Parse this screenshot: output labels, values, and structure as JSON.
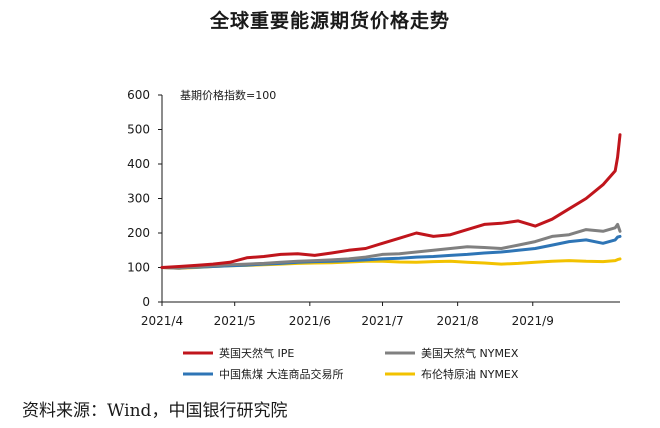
{
  "chart_data": {
    "type": "line",
    "title": "全球重要能源期货价格走势",
    "annotation": "基期价格指数=100",
    "source": "资料来源：Wind，中国银行研究院",
    "x_ticks": [
      "2021/4",
      "2021/5",
      "2021/6",
      "2021/7",
      "2021/8",
      "2021/9"
    ],
    "y_ticks": [
      "0",
      "100",
      "200",
      "300",
      "400",
      "500",
      "600"
    ],
    "ylim": [
      0,
      600
    ],
    "grid": false,
    "legend_position": "bottom",
    "x": [
      "2021-04-01",
      "2021-04-08",
      "2021-04-15",
      "2021-04-22",
      "2021-04-29",
      "2021-05-06",
      "2021-05-13",
      "2021-05-20",
      "2021-05-27",
      "2021-06-03",
      "2021-06-10",
      "2021-06-17",
      "2021-06-24",
      "2021-07-01",
      "2021-07-08",
      "2021-07-15",
      "2021-07-22",
      "2021-07-29",
      "2021-08-05",
      "2021-08-12",
      "2021-08-19",
      "2021-08-26",
      "2021-09-02",
      "2021-09-09",
      "2021-09-16",
      "2021-09-23",
      "2021-09-30",
      "2021-10-05",
      "2021-10-06",
      "2021-10-07"
    ],
    "series": [
      {
        "name": "英国天然气 IPE",
        "color": "#c0151c",
        "values": [
          100,
          103,
          106,
          110,
          115,
          128,
          132,
          138,
          140,
          135,
          142,
          150,
          155,
          170,
          185,
          200,
          190,
          195,
          210,
          225,
          228,
          235,
          220,
          240,
          270,
          300,
          340,
          380,
          420,
          485
        ]
      },
      {
        "name": "美国天然气 NYMEX",
        "color": "#808080",
        "values": [
          100,
          98,
          102,
          105,
          108,
          110,
          112,
          115,
          118,
          120,
          122,
          125,
          130,
          138,
          140,
          145,
          150,
          155,
          160,
          158,
          155,
          165,
          175,
          190,
          195,
          210,
          205,
          215,
          225,
          205
        ]
      },
      {
        "name": "中国焦煤 大连商品交易所",
        "color": "#2e75b6",
        "values": [
          100,
          99,
          101,
          103,
          105,
          107,
          110,
          112,
          115,
          117,
          118,
          120,
          122,
          125,
          127,
          130,
          132,
          135,
          138,
          142,
          145,
          150,
          155,
          165,
          175,
          180,
          170,
          180,
          188,
          190
        ]
      },
      {
        "name": "布伦特原油 NYMEX",
        "color": "#f2c200",
        "values": [
          100,
          98,
          100,
          103,
          105,
          106,
          108,
          110,
          112,
          113,
          114,
          116,
          118,
          118,
          116,
          115,
          117,
          118,
          115,
          113,
          110,
          112,
          115,
          118,
          120,
          118,
          117,
          120,
          123,
          125
        ]
      }
    ]
  }
}
